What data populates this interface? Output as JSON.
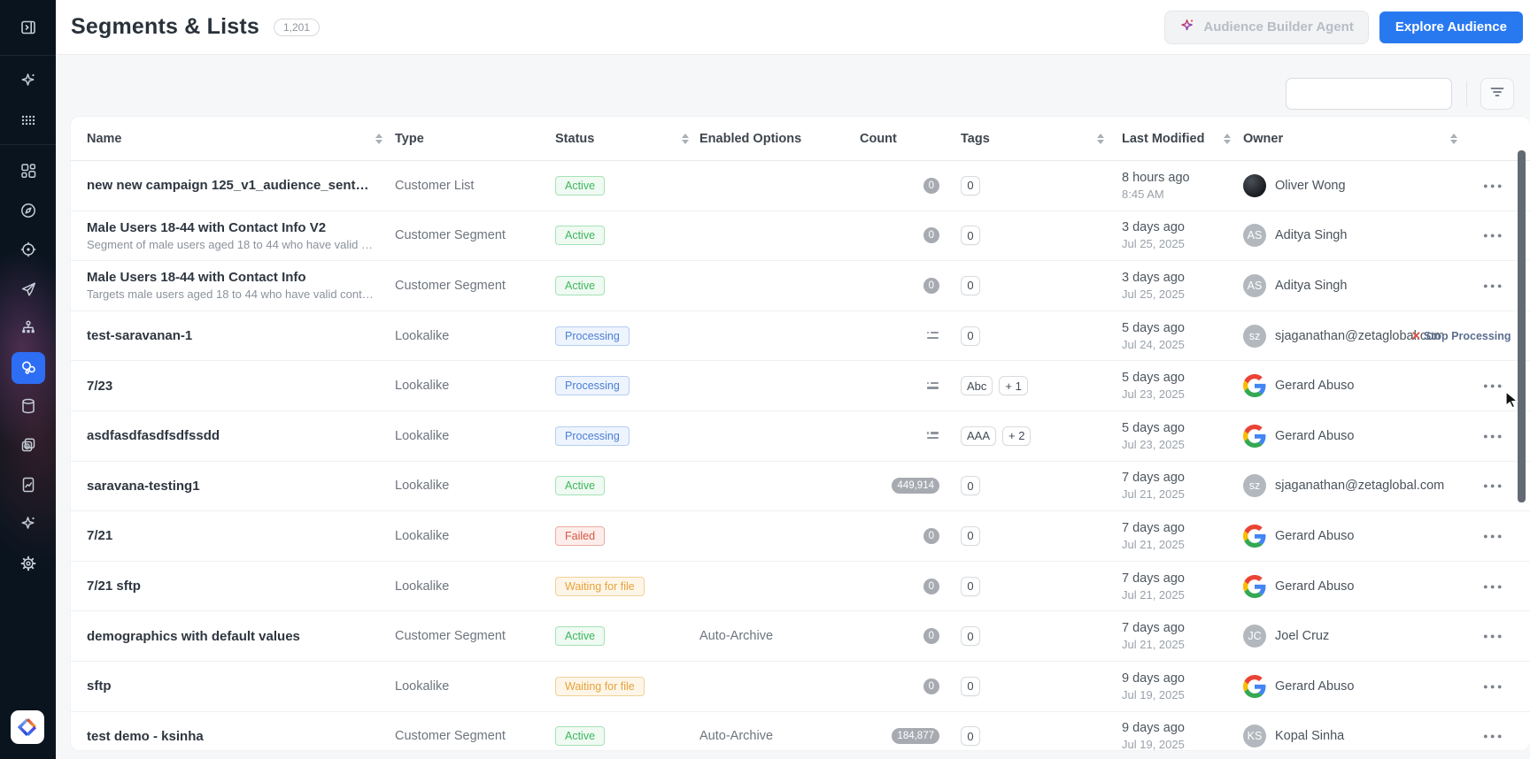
{
  "header": {
    "title": "Segments & Lists",
    "total_count_badge": "1,201",
    "agent_button_label": "Audience Builder Agent",
    "explore_button_label": "Explore Audience"
  },
  "toolbar": {
    "search_placeholder": "",
    "search_value": ""
  },
  "sidebar": {
    "items": [
      {
        "icon": "panel-toggle-icon"
      },
      {
        "icon": "ai-sparkle-icon"
      },
      {
        "icon": "apps-grid-icon"
      },
      {
        "icon": "dashboard-icon"
      },
      {
        "icon": "compass-icon"
      },
      {
        "icon": "target-icon"
      },
      {
        "icon": "send-icon"
      },
      {
        "icon": "hierarchy-icon"
      },
      {
        "icon": "segments-icon",
        "active": true
      },
      {
        "icon": "database-icon"
      },
      {
        "icon": "history-icon"
      },
      {
        "icon": "report-icon"
      },
      {
        "icon": "sparkle-icon"
      },
      {
        "icon": "settings-gear-icon"
      },
      {
        "icon": "zeta-logo"
      }
    ]
  },
  "table": {
    "columns": [
      {
        "key": "name",
        "label": "Name",
        "sortable": true
      },
      {
        "key": "type",
        "label": "Type",
        "sortable": false
      },
      {
        "key": "status",
        "label": "Status",
        "sortable": true
      },
      {
        "key": "options",
        "label": "Enabled Options",
        "sortable": false
      },
      {
        "key": "count",
        "label": "Count",
        "sortable": false
      },
      {
        "key": "tags",
        "label": "Tags",
        "sortable": true
      },
      {
        "key": "modified",
        "label": "Last Modified",
        "sortable": true
      },
      {
        "key": "owner",
        "label": "Owner",
        "sortable": true
      },
      {
        "key": "menu",
        "label": "",
        "sortable": false
      }
    ],
    "rows": [
      {
        "name": "new new campaign 125_v1_audience_sent_...",
        "description": "",
        "type": "Customer List",
        "status": "Active",
        "status_variant": "active",
        "options": "",
        "count": {
          "kind": "pill",
          "value": "0"
        },
        "tags": [
          "0"
        ],
        "modified_relative": "8 hours ago",
        "modified_date": "8:45 AM",
        "owner": {
          "name": "Oliver Wong",
          "avatar": "photo",
          "initials": ""
        },
        "hover_action": null,
        "show_menu": true
      },
      {
        "name": "Male Users 18-44 with Contact Info V2",
        "description": "Segment of male users aged 18 to 44 who have valid cont...",
        "type": "Customer Segment",
        "status": "Active",
        "status_variant": "active",
        "options": "",
        "count": {
          "kind": "pill",
          "value": "0"
        },
        "tags": [
          "0"
        ],
        "modified_relative": "3 days ago",
        "modified_date": "Jul 25, 2025",
        "owner": {
          "name": "Aditya Singh",
          "avatar": "initials",
          "initials": "AS"
        },
        "hover_action": null,
        "show_menu": true
      },
      {
        "name": "Male Users 18-44 with Contact Info",
        "description": "Targets male users aged 18 to 44 who have valid contact i...",
        "type": "Customer Segment",
        "status": "Active",
        "status_variant": "active",
        "options": "",
        "count": {
          "kind": "pill",
          "value": "0"
        },
        "tags": [
          "0"
        ],
        "modified_relative": "3 days ago",
        "modified_date": "Jul 25, 2025",
        "owner": {
          "name": "Aditya Singh",
          "avatar": "initials",
          "initials": "AS"
        },
        "hover_action": null,
        "show_menu": true
      },
      {
        "name": "test-saravanan-1",
        "description": "",
        "type": "Lookalike",
        "status": "Processing",
        "status_variant": "processing",
        "options": "",
        "count": {
          "kind": "processing"
        },
        "tags": [
          "0"
        ],
        "modified_relative": "5 days ago",
        "modified_date": "Jul 24, 2025",
        "owner": {
          "name": "sjaganathan@zetaglobal.com",
          "avatar": "initials",
          "initials": "sz"
        },
        "hover_action": {
          "label": "Stop Processing"
        },
        "show_menu": false
      },
      {
        "name": "7/23",
        "description": "",
        "type": "Lookalike",
        "status": "Processing",
        "status_variant": "processing",
        "options": "",
        "count": {
          "kind": "processing"
        },
        "tags": [
          "Abc",
          "+ 1"
        ],
        "modified_relative": "5 days ago",
        "modified_date": "Jul 23, 2025",
        "owner": {
          "name": "Gerard Abuso",
          "avatar": "google",
          "initials": ""
        },
        "hover_action": null,
        "show_menu": true
      },
      {
        "name": "asdfasdfasdfsdfssdd",
        "description": "",
        "type": "Lookalike",
        "status": "Processing",
        "status_variant": "processing",
        "options": "",
        "count": {
          "kind": "processing"
        },
        "tags": [
          "AAA",
          "+ 2"
        ],
        "modified_relative": "5 days ago",
        "modified_date": "Jul 23, 2025",
        "owner": {
          "name": "Gerard Abuso",
          "avatar": "google",
          "initials": ""
        },
        "hover_action": null,
        "show_menu": true
      },
      {
        "name": "saravana-testing1",
        "description": "",
        "type": "Lookalike",
        "status": "Active",
        "status_variant": "active",
        "options": "",
        "count": {
          "kind": "pill",
          "value": "449,914"
        },
        "tags": [
          "0"
        ],
        "modified_relative": "7 days ago",
        "modified_date": "Jul 21, 2025",
        "owner": {
          "name": "sjaganathan@zetaglobal.com",
          "avatar": "initials",
          "initials": "sz"
        },
        "hover_action": null,
        "show_menu": true
      },
      {
        "name": "7/21",
        "description": "",
        "type": "Lookalike",
        "status": "Failed",
        "status_variant": "failed",
        "options": "",
        "count": {
          "kind": "pill",
          "value": "0"
        },
        "tags": [
          "0"
        ],
        "modified_relative": "7 days ago",
        "modified_date": "Jul 21, 2025",
        "owner": {
          "name": "Gerard Abuso",
          "avatar": "google",
          "initials": ""
        },
        "hover_action": null,
        "show_menu": true
      },
      {
        "name": "7/21 sftp",
        "description": "",
        "type": "Lookalike",
        "status": "Waiting for file",
        "status_variant": "waiting",
        "options": "",
        "count": {
          "kind": "pill",
          "value": "0"
        },
        "tags": [
          "0"
        ],
        "modified_relative": "7 days ago",
        "modified_date": "Jul 21, 2025",
        "owner": {
          "name": "Gerard Abuso",
          "avatar": "google",
          "initials": ""
        },
        "hover_action": null,
        "show_menu": true
      },
      {
        "name": "demographics with default values",
        "description": "",
        "type": "Customer Segment",
        "status": "Active",
        "status_variant": "active",
        "options": "Auto-Archive",
        "count": {
          "kind": "pill",
          "value": "0"
        },
        "tags": [
          "0"
        ],
        "modified_relative": "7 days ago",
        "modified_date": "Jul 21, 2025",
        "owner": {
          "name": "Joel Cruz",
          "avatar": "initials",
          "initials": "JC"
        },
        "hover_action": null,
        "show_menu": true
      },
      {
        "name": "sftp",
        "description": "",
        "type": "Lookalike",
        "status": "Waiting for file",
        "status_variant": "waiting",
        "options": "",
        "count": {
          "kind": "pill",
          "value": "0"
        },
        "tags": [
          "0"
        ],
        "modified_relative": "9 days ago",
        "modified_date": "Jul 19, 2025",
        "owner": {
          "name": "Gerard Abuso",
          "avatar": "google",
          "initials": ""
        },
        "hover_action": null,
        "show_menu": true
      },
      {
        "name": "test demo - ksinha",
        "description": "",
        "type": "Customer Segment",
        "status": "Active",
        "status_variant": "active",
        "options": "Auto-Archive",
        "count": {
          "kind": "pill",
          "value": "184,877"
        },
        "tags": [
          "0"
        ],
        "modified_relative": "9 days ago",
        "modified_date": "Jul 19, 2025",
        "owner": {
          "name": "Kopal Sinha",
          "avatar": "initials",
          "initials": "KS"
        },
        "hover_action": null,
        "show_menu": true
      }
    ]
  },
  "colors": {
    "accent_blue": "#2879f0",
    "sidebar_active_blue": "#2e6ef5",
    "status_active_green": "#3eb65f",
    "status_processing_blue": "#4a7fd4",
    "status_failed_red": "#d65745",
    "status_waiting_orange": "#e7a23b",
    "count_pill_gray": "#a7abb1",
    "stop_processing_x_red": "#d94f43"
  }
}
